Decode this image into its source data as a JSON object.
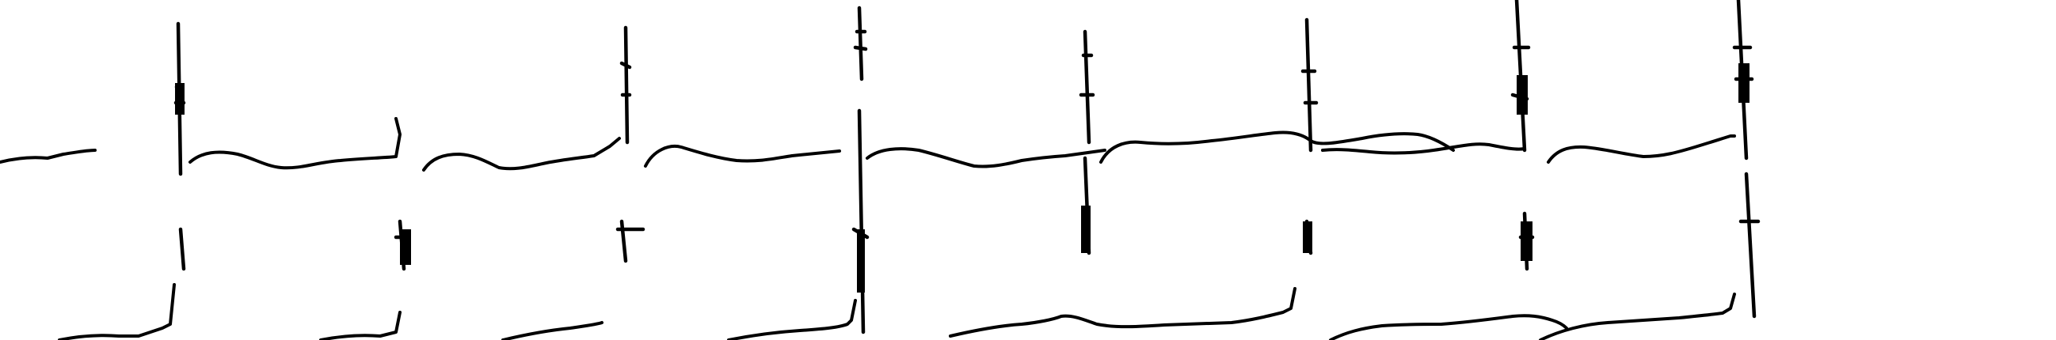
{
  "image": {
    "kind": "scanned ECG rhythm strip, black ink on white, no printed text",
    "ink_color": "#000000",
    "paper_color": "#ffffff"
  }
}
